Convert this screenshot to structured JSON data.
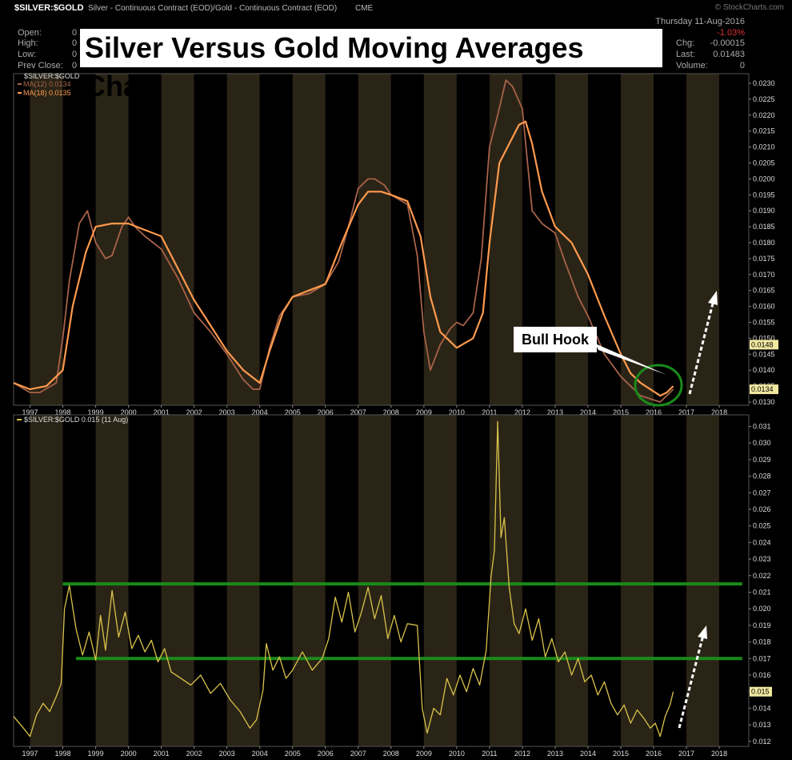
{
  "header": {
    "symbol": "$SILVER:$GOLD",
    "description": "Silver - Continuous Contract (EOD)/Gold - Continuous Contract (EOD)",
    "exchange": "CME",
    "date": "Thursday 11-Aug-2016",
    "watermark": "© StockCharts.com",
    "change_pct": "-1.03%",
    "stats": {
      "open_label": "Open:",
      "high_label": "High:",
      "low_label": "Low:",
      "prev_close_label": "Prev Close:",
      "open_value": "0",
      "high_value": "0",
      "low_value": "0",
      "prev_close_value": "0",
      "chg_label": "Chg:",
      "chg_value": "-0.00015",
      "last_label": "Last:",
      "last_value": "0.01483",
      "volume_label": "Volume:",
      "volume_value": "0"
    }
  },
  "overlay_title": "Silver Versus Gold Moving Averages Chart",
  "annotation": {
    "label": "Bull Hook"
  },
  "colors": {
    "ma12": "#a8624a",
    "ma18": "#ff9a4d",
    "ratio": "#d9c24a",
    "green": "#1a8a1a",
    "band_light": "#2a2416",
    "band_dark": "#000000",
    "axis_text": "#dddddd",
    "price_tag": "#f0e8a0"
  },
  "chart_data": [
    {
      "type": "line",
      "title": "$SILVER:$GOLD",
      "series": [
        {
          "name": "MA(12) 0.0134",
          "x": [
            1996.5,
            1997,
            1997.3,
            1997.8,
            1998,
            1998.2,
            1998.5,
            1998.75,
            1999,
            1999.3,
            1999.5,
            1999.8,
            2000,
            2000.2,
            2000.5,
            2001,
            2001.5,
            2002,
            2002.5,
            2003,
            2003.5,
            2003.8,
            2004,
            2004.3,
            2004.6,
            2005,
            2005.5,
            2006,
            2006.4,
            2006.7,
            2007,
            2007.3,
            2007.5,
            2007.8,
            2008,
            2008.5,
            2008.8,
            2009,
            2009.2,
            2009.5,
            2009.8,
            2010,
            2010.2,
            2010.5,
            2010.75,
            2011,
            2011.25,
            2011.5,
            2011.7,
            2012,
            2012.3,
            2012.6,
            2013,
            2013.3,
            2013.7,
            2014,
            2014.5,
            2015,
            2015.3,
            2015.6,
            2015.9,
            2016.2,
            2016.4,
            2016.6
          ],
          "values": [
            0.0136,
            0.0133,
            0.0133,
            0.0136,
            0.015,
            0.0168,
            0.0186,
            0.019,
            0.018,
            0.0175,
            0.0176,
            0.0185,
            0.0188,
            0.0185,
            0.0182,
            0.0178,
            0.0169,
            0.0158,
            0.0152,
            0.0145,
            0.0137,
            0.0134,
            0.0134,
            0.0147,
            0.0157,
            0.0163,
            0.0164,
            0.0167,
            0.0174,
            0.0185,
            0.0197,
            0.02,
            0.02,
            0.0198,
            0.0195,
            0.0192,
            0.0176,
            0.0152,
            0.014,
            0.0148,
            0.0153,
            0.0155,
            0.0154,
            0.0158,
            0.0175,
            0.021,
            0.022,
            0.0231,
            0.0229,
            0.0222,
            0.019,
            0.0186,
            0.0183,
            0.0174,
            0.0163,
            0.0157,
            0.0145,
            0.0138,
            0.0135,
            0.0132,
            0.0131,
            0.013,
            0.0132,
            0.0134
          ]
        },
        {
          "name": "MA(18) 0.0135",
          "x": [
            1996.5,
            1997,
            1997.5,
            1998,
            1998.3,
            1998.7,
            1999,
            1999.5,
            2000,
            2000.5,
            2001,
            2001.5,
            2002,
            2002.5,
            2003,
            2003.5,
            2004,
            2004.3,
            2004.7,
            2005,
            2005.5,
            2006,
            2006.5,
            2007,
            2007.3,
            2007.7,
            2008,
            2008.5,
            2008.9,
            2009.2,
            2009.5,
            2010,
            2010.5,
            2010.8,
            2011,
            2011.3,
            2011.6,
            2011.9,
            2012.1,
            2012.3,
            2012.6,
            2013,
            2013.5,
            2014,
            2014.5,
            2015,
            2015.3,
            2015.6,
            2015.9,
            2016.2,
            2016.4,
            2016.6
          ],
          "values": [
            0.0136,
            0.0134,
            0.0135,
            0.014,
            0.016,
            0.0177,
            0.0185,
            0.0186,
            0.0186,
            0.0184,
            0.0182,
            0.0172,
            0.0162,
            0.0154,
            0.0146,
            0.014,
            0.0136,
            0.0146,
            0.0158,
            0.0163,
            0.0165,
            0.0167,
            0.018,
            0.0192,
            0.0196,
            0.0196,
            0.0195,
            0.0193,
            0.0182,
            0.0163,
            0.0152,
            0.0147,
            0.015,
            0.0158,
            0.018,
            0.0205,
            0.0211,
            0.0217,
            0.0218,
            0.0211,
            0.0196,
            0.0185,
            0.018,
            0.017,
            0.0157,
            0.0145,
            0.0139,
            0.0136,
            0.0134,
            0.0132,
            0.0133,
            0.0135
          ]
        }
      ],
      "y_ticks": [
        "0.0130",
        "0.0135",
        "0.0140",
        "0.0145",
        "0.0150",
        "0.0155",
        "0.0160",
        "0.0165",
        "0.0170",
        "0.0175",
        "0.0180",
        "0.0185",
        "0.0190",
        "0.0195",
        "0.0200",
        "0.0205",
        "0.0210",
        "0.0215",
        "0.0220",
        "0.0225",
        "0.0230"
      ],
      "ylim": [
        0.0129,
        0.0233
      ],
      "price_tags": [
        "0.0148",
        "0.0134"
      ],
      "xlim": [
        1996.5,
        2018.9
      ],
      "x_ticks": [
        "1997",
        "1998",
        "1999",
        "2000",
        "2001",
        "2002",
        "2003",
        "2004",
        "2005",
        "2006",
        "2007",
        "2008",
        "2009",
        "2010",
        "2011",
        "2012",
        "2013",
        "2014",
        "2015",
        "2016",
        "2017",
        "2018"
      ]
    },
    {
      "type": "line",
      "title": "$SILVER:$GOLD 0.015 (11 Aug)",
      "series": [
        {
          "name": "$SILVER:$GOLD 0.015 (11 Aug)",
          "x": [
            1996.5,
            1996.8,
            1997,
            1997.2,
            1997.4,
            1997.6,
            1997.8,
            1997.95,
            1998.05,
            1998.2,
            1998.4,
            1998.6,
            1998.8,
            1999,
            1999.15,
            1999.3,
            1999.5,
            1999.7,
            1999.9,
            2000.1,
            2000.3,
            2000.5,
            2000.7,
            2000.9,
            2001.1,
            2001.3,
            2001.6,
            2001.9,
            2002.2,
            2002.5,
            2002.8,
            2003.1,
            2003.4,
            2003.7,
            2003.9,
            2004.1,
            2004.2,
            2004.4,
            2004.6,
            2004.8,
            2005,
            2005.3,
            2005.6,
            2005.9,
            2006.1,
            2006.3,
            2006.5,
            2006.7,
            2006.9,
            2007.1,
            2007.3,
            2007.5,
            2007.7,
            2007.9,
            2008.1,
            2008.3,
            2008.5,
            2008.8,
            2008.95,
            2009.1,
            2009.3,
            2009.5,
            2009.7,
            2009.9,
            2010.1,
            2010.3,
            2010.5,
            2010.7,
            2010.9,
            2011.05,
            2011.15,
            2011.25,
            2011.35,
            2011.45,
            2011.6,
            2011.75,
            2011.9,
            2012.1,
            2012.3,
            2012.5,
            2012.7,
            2012.9,
            2013.1,
            2013.3,
            2013.5,
            2013.7,
            2013.9,
            2014.1,
            2014.3,
            2014.5,
            2014.7,
            2014.9,
            2015.1,
            2015.3,
            2015.5,
            2015.7,
            2015.9,
            2016.05,
            2016.2,
            2016.35,
            2016.5,
            2016.6
          ],
          "values": [
            0.0135,
            0.0128,
            0.0123,
            0.0136,
            0.0143,
            0.0138,
            0.0147,
            0.0155,
            0.02,
            0.0214,
            0.0188,
            0.0172,
            0.0186,
            0.0169,
            0.0196,
            0.0175,
            0.0211,
            0.0183,
            0.0198,
            0.0176,
            0.0184,
            0.0174,
            0.0181,
            0.0168,
            0.0176,
            0.0162,
            0.0158,
            0.0154,
            0.016,
            0.0149,
            0.0155,
            0.0145,
            0.0138,
            0.0128,
            0.0133,
            0.0151,
            0.0179,
            0.0163,
            0.0171,
            0.0158,
            0.0163,
            0.0174,
            0.0163,
            0.017,
            0.0182,
            0.0207,
            0.0192,
            0.021,
            0.0186,
            0.0198,
            0.0213,
            0.0194,
            0.0208,
            0.0182,
            0.0196,
            0.018,
            0.0191,
            0.019,
            0.014,
            0.0125,
            0.014,
            0.0136,
            0.0158,
            0.0148,
            0.016,
            0.015,
            0.0164,
            0.0154,
            0.0175,
            0.022,
            0.0235,
            0.0313,
            0.0243,
            0.0255,
            0.0213,
            0.0191,
            0.0185,
            0.02,
            0.0181,
            0.0194,
            0.0171,
            0.0182,
            0.0168,
            0.0174,
            0.016,
            0.017,
            0.0156,
            0.016,
            0.0148,
            0.0156,
            0.0143,
            0.0136,
            0.0142,
            0.0131,
            0.0139,
            0.0134,
            0.0128,
            0.0131,
            0.0123,
            0.0135,
            0.0142,
            0.015
          ]
        }
      ],
      "y_ticks": [
        "0.012",
        "0.013",
        "0.014",
        "0.015",
        "0.016",
        "0.017",
        "0.018",
        "0.019",
        "0.020",
        "0.021",
        "0.022",
        "0.023",
        "0.024",
        "0.025",
        "0.026",
        "0.027",
        "0.028",
        "0.029",
        "0.030",
        "0.031"
      ],
      "ylim": [
        0.0117,
        0.0317
      ],
      "price_tags": [
        "0.015"
      ],
      "xlim": [
        1996.5,
        2018.9
      ],
      "x_ticks": [
        "1997",
        "1998",
        "1999",
        "2000",
        "2001",
        "2002",
        "2003",
        "2004",
        "2005",
        "2006",
        "2007",
        "2008",
        "2009",
        "2010",
        "2011",
        "2012",
        "2013",
        "2014",
        "2015",
        "2016",
        "2017",
        "2018"
      ],
      "trendlines": [
        {
          "from": [
            1998.0,
            0.0215
          ],
          "to": [
            2018.7,
            0.0215
          ]
        },
        {
          "from": [
            1998.4,
            0.017
          ],
          "to": [
            2018.7,
            0.017
          ]
        }
      ]
    }
  ]
}
